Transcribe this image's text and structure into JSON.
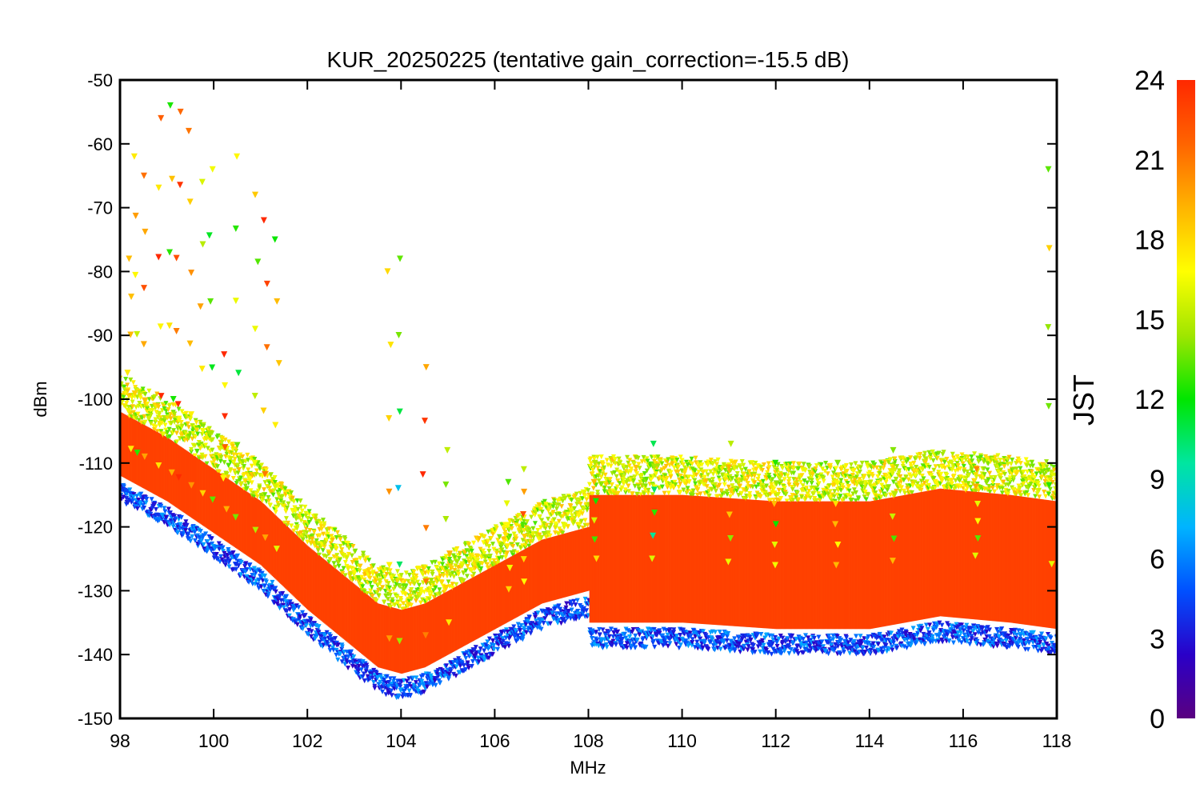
{
  "chart_data": {
    "type": "scatter",
    "title": "KUR_20250225 (tentative gain_correction=-15.5 dB)",
    "xlabel": "MHz",
    "ylabel": "dBm",
    "xlim": [
      98,
      118
    ],
    "ylim": [
      -150,
      -50
    ],
    "x_ticks": [
      "98",
      "100",
      "102",
      "104",
      "106",
      "108",
      "110",
      "112",
      "114",
      "116",
      "118"
    ],
    "y_ticks": [
      "-50",
      "-60",
      "-70",
      "-80",
      "-90",
      "-100",
      "-110",
      "-120",
      "-130",
      "-140",
      "-150"
    ],
    "grid": false,
    "colorbar": {
      "label": "JST",
      "range": [
        0,
        24
      ],
      "ticks": [
        "0",
        "3",
        "6",
        "9",
        "12",
        "15",
        "18",
        "21",
        "24"
      ],
      "colormap": "rainbow",
      "stops": [
        "#5a0080",
        "#2a00c8",
        "#0050ff",
        "#00b4ff",
        "#00e6a0",
        "#00e600",
        "#a0e600",
        "#ffff00",
        "#ffb400",
        "#ff6400",
        "#ff2800"
      ]
    },
    "baseline": [
      {
        "x": 98.0,
        "y": -107
      },
      {
        "x": 99.0,
        "y": -111
      },
      {
        "x": 100.0,
        "y": -116
      },
      {
        "x": 101.0,
        "y": -121
      },
      {
        "x": 102.0,
        "y": -128
      },
      {
        "x": 103.0,
        "y": -134
      },
      {
        "x": 103.5,
        "y": -137
      },
      {
        "x": 104.0,
        "y": -138
      },
      {
        "x": 104.5,
        "y": -137
      },
      {
        "x": 105.0,
        "y": -135
      },
      {
        "x": 106.0,
        "y": -131
      },
      {
        "x": 107.0,
        "y": -127
      },
      {
        "x": 108.0,
        "y": -125
      },
      {
        "x": 110.0,
        "y": -125
      },
      {
        "x": 112.0,
        "y": -126
      },
      {
        "x": 114.0,
        "y": -126
      },
      {
        "x": 115.5,
        "y": -124
      },
      {
        "x": 117.0,
        "y": -125
      },
      {
        "x": 118.0,
        "y": -126
      }
    ],
    "spikes": [
      {
        "x": 98.2,
        "top": -78,
        "jst": 20
      },
      {
        "x": 98.35,
        "top": -62,
        "jst": 16
      },
      {
        "x": 98.5,
        "top": -65,
        "jst": 19
      },
      {
        "x": 98.85,
        "top": -56,
        "jst": 21
      },
      {
        "x": 99.1,
        "top": -54,
        "jst": 16
      },
      {
        "x": 99.25,
        "top": -55,
        "jst": 21
      },
      {
        "x": 99.5,
        "top": -58,
        "jst": 20
      },
      {
        "x": 99.75,
        "top": -66,
        "jst": 18
      },
      {
        "x": 99.95,
        "top": -64,
        "jst": 15
      },
      {
        "x": 100.25,
        "top": -93,
        "jst": 21
      },
      {
        "x": 100.5,
        "top": -62,
        "jst": 15
      },
      {
        "x": 100.9,
        "top": -68,
        "jst": 15
      },
      {
        "x": 101.1,
        "top": -72,
        "jst": 22
      },
      {
        "x": 101.35,
        "top": -75,
        "jst": 15
      },
      {
        "x": 103.75,
        "top": -80,
        "jst": 20
      },
      {
        "x": 103.95,
        "top": -78,
        "jst": 11
      },
      {
        "x": 104.5,
        "top": -95,
        "jst": 22
      },
      {
        "x": 105.0,
        "top": -108,
        "jst": 16
      },
      {
        "x": 106.3,
        "top": -113,
        "jst": 16
      },
      {
        "x": 106.6,
        "top": -111,
        "jst": 19
      },
      {
        "x": 108.15,
        "top": -110,
        "jst": 16
      },
      {
        "x": 109.4,
        "top": -107,
        "jst": 13
      },
      {
        "x": 111.0,
        "top": -107,
        "jst": 16
      },
      {
        "x": 112.0,
        "top": -110,
        "jst": 15
      },
      {
        "x": 113.3,
        "top": -110,
        "jst": 17
      },
      {
        "x": 114.5,
        "top": -108,
        "jst": 15
      },
      {
        "x": 116.3,
        "top": -111,
        "jst": 17
      },
      {
        "x": 117.85,
        "top": -64,
        "jst": 15
      }
    ]
  }
}
